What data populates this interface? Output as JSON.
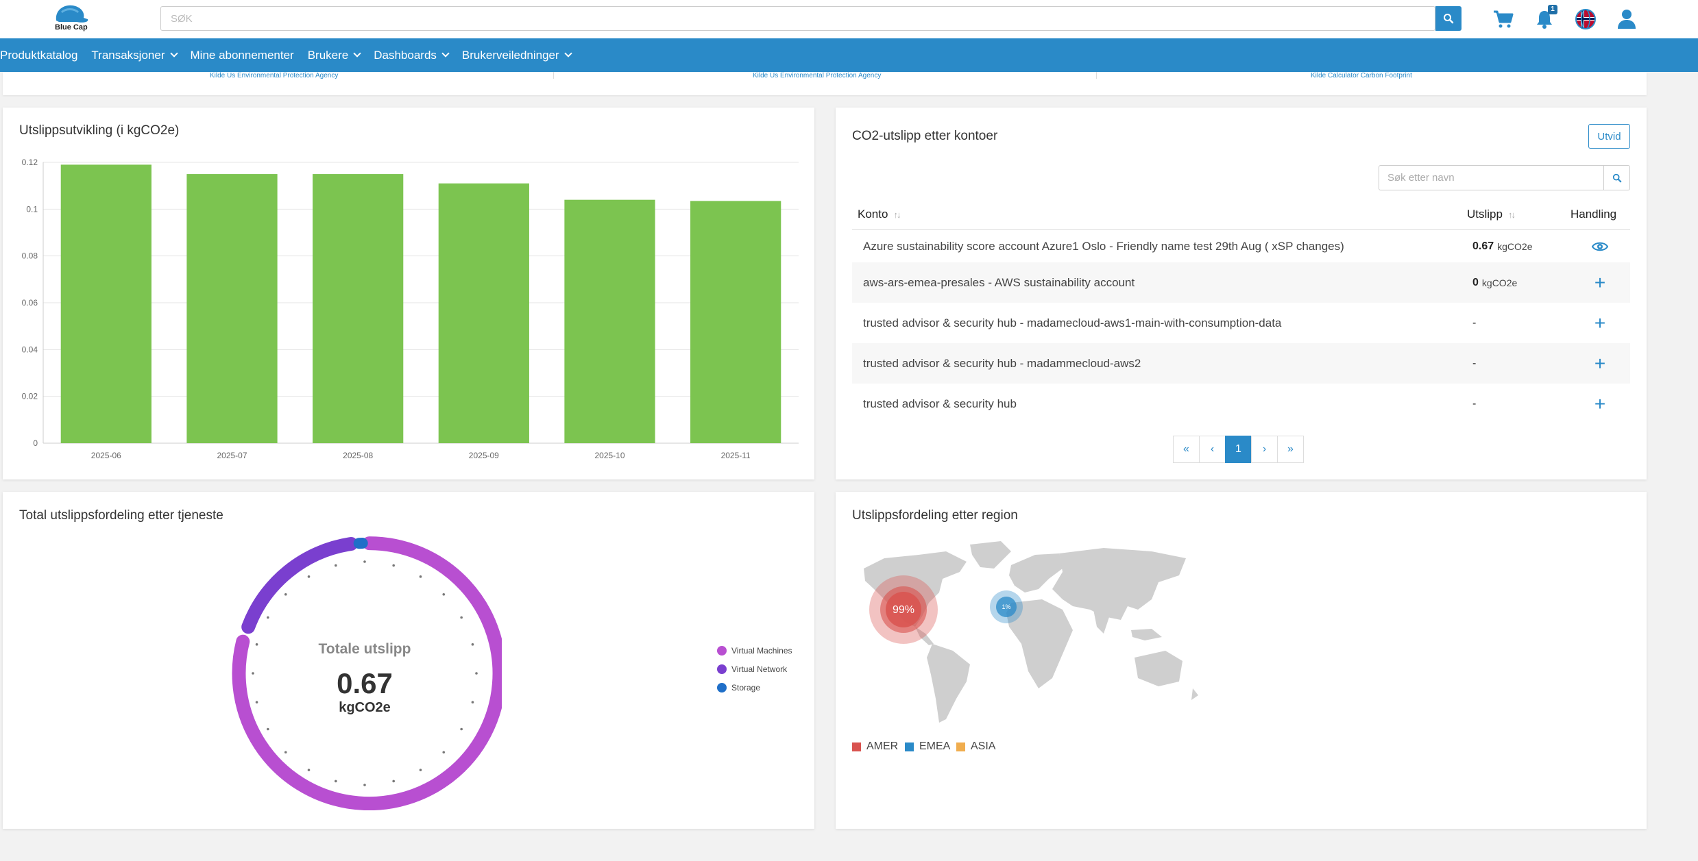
{
  "header": {
    "brand": "Blue Cap",
    "search_placeholder": "SØK",
    "notification_count": "1"
  },
  "nav": {
    "items": [
      {
        "label": "Produktkatalog",
        "dropdown": false
      },
      {
        "label": "Transaksjoner",
        "dropdown": true
      },
      {
        "label": "Mine abonnementer",
        "dropdown": false
      },
      {
        "label": "Brukere",
        "dropdown": true
      },
      {
        "label": "Dashboards",
        "dropdown": true
      },
      {
        "label": "Brukerveiledninger",
        "dropdown": true
      }
    ]
  },
  "sources": [
    "Kilde Us Environmental Protection Agency",
    "Kilde Us Environmental Protection Agency",
    "Kilde Calculator Carbon Footprint"
  ],
  "emission_trend": {
    "title": "Utslippsutvikling (i kgCO2e)"
  },
  "chart_data": {
    "type": "bar",
    "title": "Utslippsutvikling (i kgCO2e)",
    "categories": [
      "2025-06",
      "2025-07",
      "2025-08",
      "2025-09",
      "2025-10",
      "2025-11"
    ],
    "values": [
      0.119,
      0.115,
      0.115,
      0.111,
      0.104,
      0.1035
    ],
    "ylim": [
      0,
      0.12
    ],
    "yticks": [
      "0",
      "0.02",
      "0.04",
      "0.06",
      "0.08",
      "0.1",
      "0.12"
    ],
    "ytick_values": [
      0,
      0.02,
      0.04,
      0.06,
      0.08,
      0.1,
      0.12
    ],
    "color": "#7cc450",
    "grid": true
  },
  "accounts": {
    "title": "CO2-utslipp etter kontoer",
    "expand_label": "Utvid",
    "search_placeholder": "Søk etter navn",
    "columns": {
      "account": "Konto",
      "emission": "Utslipp",
      "action": "Handling"
    },
    "rows": [
      {
        "name": "Azure sustainability score account Azure1 Oslo - Friendly name test 29th Aug ( xSP changes)",
        "value": "0.67",
        "unit": "kgCO2e",
        "action": "view"
      },
      {
        "name": "aws-ars-emea-presales - AWS sustainability account",
        "value": "0",
        "unit": "kgCO2e",
        "action": "add"
      },
      {
        "name": "trusted advisor & security hub - madamecloud-aws1-main-with-consumption-data",
        "value": "-",
        "unit": "",
        "action": "add"
      },
      {
        "name": "trusted advisor & security hub - madammecloud-aws2",
        "value": "-",
        "unit": "",
        "action": "add"
      },
      {
        "name": "trusted advisor & security hub",
        "value": "-",
        "unit": "",
        "action": "add"
      }
    ],
    "pagination": {
      "first": "«",
      "prev": "‹",
      "current": "1",
      "next": "›",
      "last": "»"
    }
  },
  "service_distribution": {
    "title": "Total utslippsfordeling etter tjeneste",
    "center_label": "Totale utslipp",
    "center_value": "0.67",
    "center_unit": "kgCO2e",
    "legend": [
      {
        "name": "Virtual Machines",
        "color": "#b84fd1"
      },
      {
        "name": "Virtual Network",
        "color": "#7a3fcf"
      },
      {
        "name": "Storage",
        "color": "#1f6fc8"
      }
    ]
  },
  "region_distribution": {
    "title": "Utslippsfordeling etter region",
    "markers": [
      {
        "region": "AMER",
        "label": "99%",
        "color": "#d9534f"
      },
      {
        "region": "EMEA",
        "label": "1%",
        "color": "#2a8ac8"
      }
    ],
    "legend": [
      {
        "name": "AMER",
        "color": "#d9534f"
      },
      {
        "name": "EMEA",
        "color": "#2a8ac8"
      },
      {
        "name": "ASIA",
        "color": "#f0ad4e"
      }
    ]
  }
}
